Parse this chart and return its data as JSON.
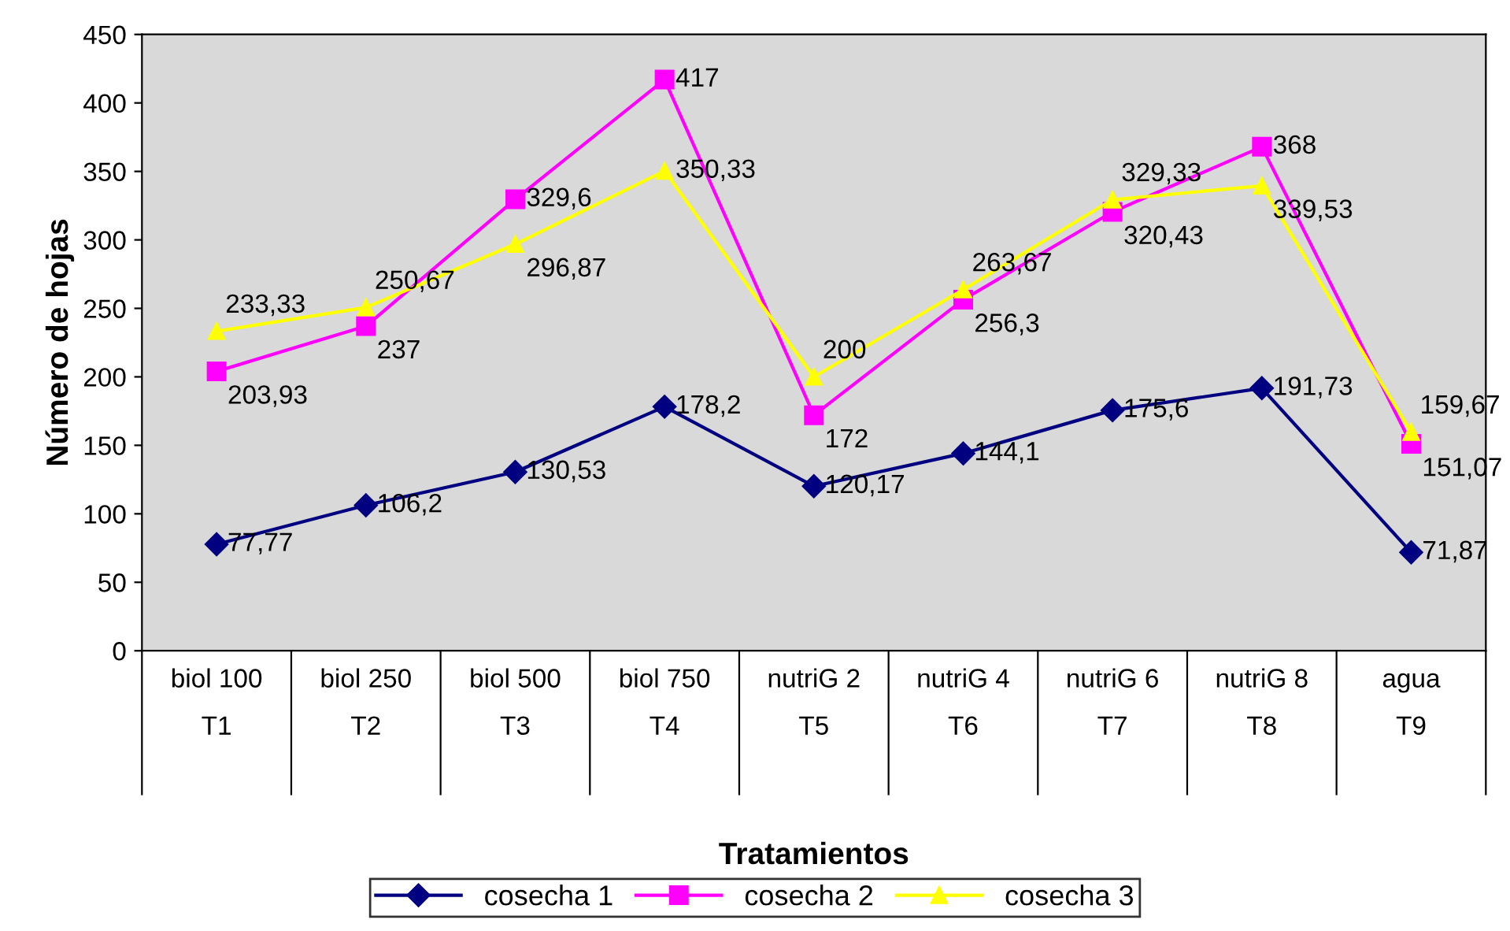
{
  "chart_data": {
    "type": "line",
    "xlabel": "Tratamientos",
    "ylabel": "Número de hojas",
    "categories": [
      "biol 100\nT1",
      "biol 250\nT2",
      "biol 500\nT3",
      "biol 750\nT4",
      "nutriG 2\nT5",
      "nutriG 4\nT6",
      "nutriG 6\nT7",
      "nutriG 8\nT8",
      "agua\nT9"
    ],
    "series": [
      {
        "name": "cosecha 1",
        "color": "#000080",
        "marker": "diamond",
        "values": [
          77.77,
          106.2,
          130.53,
          178.2,
          120.17,
          144.1,
          175.6,
          191.73,
          71.87
        ],
        "value_labels": [
          "77,77",
          "106,2",
          "130,53",
          "178,2",
          "120,17",
          "144,1",
          "175,6",
          "191,73",
          "71,87"
        ]
      },
      {
        "name": "cosecha 2",
        "color": "#ff00ff",
        "marker": "square",
        "values": [
          203.93,
          237,
          329.6,
          417,
          172,
          256.3,
          320.43,
          368,
          151.07
        ],
        "value_labels": [
          "203,93",
          "237",
          "329,6",
          "417",
          "172",
          "256,3",
          "320,43",
          "368",
          "151,07"
        ]
      },
      {
        "name": "cosecha 3",
        "color": "#ffff00",
        "marker": "triangle",
        "values": [
          233.33,
          250.67,
          296.87,
          350.33,
          200,
          263.67,
          329.33,
          339.53,
          159.67
        ],
        "value_labels": [
          "233,33",
          "250,67",
          "296,87",
          "350,33",
          "200",
          "263,67",
          "329,33",
          "339,53",
          "159,67"
        ]
      }
    ],
    "ylim": [
      0,
      450
    ],
    "yticks": [
      0,
      50,
      100,
      150,
      200,
      250,
      300,
      350,
      400,
      450
    ],
    "grid": false,
    "legend": "bottom",
    "line_style": "solid"
  }
}
